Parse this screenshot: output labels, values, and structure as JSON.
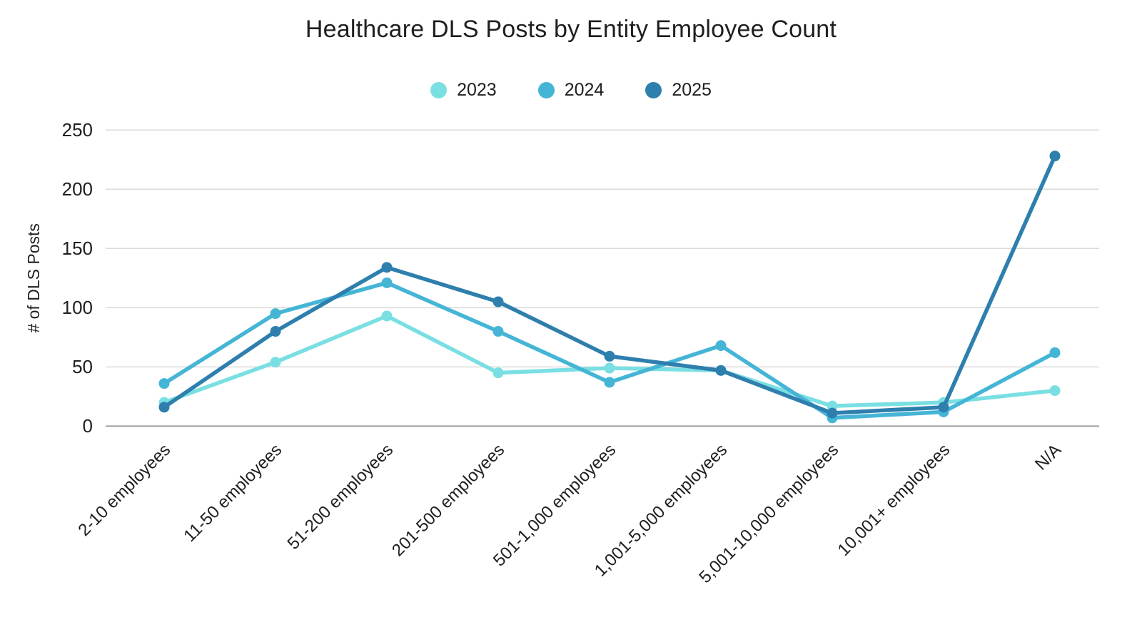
{
  "chart_data": {
    "type": "line",
    "title": "Healthcare DLS Posts by Entity Employee Count",
    "ylabel": "# of DLS Posts",
    "categories": [
      "2-10 employees",
      "11-50 employees",
      "51-200 employees",
      "201-500 employees",
      "501-1,000 employees",
      "1,001-5,000 employees",
      "5,001-10,000 employees",
      "10,001+ employees",
      "N/A"
    ],
    "series": [
      {
        "name": "2023",
        "color": "#7ADFE2",
        "values": [
          20,
          54,
          93,
          45,
          49,
          47,
          17,
          20,
          30
        ]
      },
      {
        "name": "2024",
        "color": "#45B5D6",
        "values": [
          36,
          95,
          121,
          80,
          37,
          68,
          7,
          12,
          62
        ]
      },
      {
        "name": "2025",
        "color": "#2E7FAE",
        "values": [
          16,
          80,
          134,
          105,
          59,
          47,
          11,
          16,
          228
        ]
      }
    ],
    "ylim": [
      0,
      250
    ],
    "yticks": [
      0,
      50,
      100,
      150,
      200,
      250
    ],
    "grid": "horizontal",
    "legend_position": "top"
  },
  "style": {
    "grid_color": "#DADADA",
    "axis_color": "#9E9E9E",
    "text_color": "#1F1F1F",
    "background": "#FFFFFF"
  }
}
